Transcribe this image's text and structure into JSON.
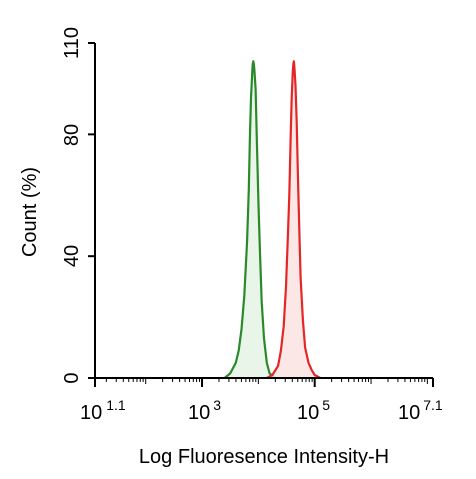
{
  "chart_data": {
    "type": "area",
    "title": "",
    "xlabel": "Log Fluoresence Intensity-H",
    "ylabel": "Count  (%)",
    "x_scale": "log",
    "xlim": [
      12.59,
      12589254
    ],
    "ylim": [
      0,
      110
    ],
    "y_ticks": [
      0,
      40,
      80,
      110
    ],
    "x_ticks": [
      {
        "value": 12.59,
        "base": "10",
        "exp": "1.1"
      },
      {
        "value": 1000,
        "base": "10",
        "exp": "3"
      },
      {
        "value": 100000,
        "base": "10",
        "exp": "5"
      },
      {
        "value": 12589254,
        "base": "10",
        "exp": "7.1"
      }
    ],
    "grid": false,
    "legend": "none",
    "series": [
      {
        "color": "#2a8a2a",
        "fill": "#e6f3e6",
        "points": [
          [
            2512,
            0
          ],
          [
            3162,
            1.5
          ],
          [
            3981,
            5
          ],
          [
            4467,
            9
          ],
          [
            5012,
            16
          ],
          [
            5623,
            27
          ],
          [
            6310,
            45
          ],
          [
            6761,
            62
          ],
          [
            7079,
            79
          ],
          [
            7413,
            92
          ],
          [
            7762,
            100
          ],
          [
            7943,
            103
          ],
          [
            8128,
            104
          ],
          [
            8318,
            103
          ],
          [
            8511,
            101
          ],
          [
            8913,
            95
          ],
          [
            9333,
            80
          ],
          [
            10000,
            58
          ],
          [
            10715,
            40
          ],
          [
            11482,
            25
          ],
          [
            12589,
            13
          ],
          [
            14125,
            5
          ],
          [
            15849,
            1.5
          ],
          [
            19953,
            0
          ]
        ]
      },
      {
        "color": "#e52626",
        "fill": "#fbe3e3",
        "points": [
          [
            14125,
            0
          ],
          [
            17783,
            1
          ],
          [
            22387,
            4
          ],
          [
            25119,
            9
          ],
          [
            28184,
            17
          ],
          [
            30903,
            30
          ],
          [
            33113,
            45
          ],
          [
            35481,
            60
          ],
          [
            37154,
            77
          ],
          [
            38905,
            91
          ],
          [
            40738,
            100
          ],
          [
            41687,
            103
          ],
          [
            42658,
            104
          ],
          [
            43652,
            102
          ],
          [
            45709,
            96
          ],
          [
            47863,
            84
          ],
          [
            50119,
            68
          ],
          [
            53088,
            50
          ],
          [
            56234,
            33
          ],
          [
            61660,
            19
          ],
          [
            67608,
            10
          ],
          [
            77625,
            5
          ],
          [
            89125,
            2.5
          ],
          [
            100000,
            1
          ],
          [
            125893,
            0
          ]
        ]
      }
    ]
  }
}
